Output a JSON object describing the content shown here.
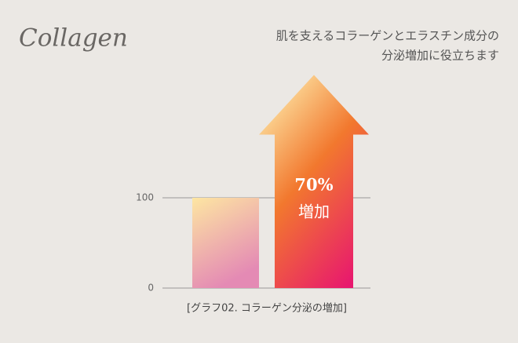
{
  "chart_data": {
    "type": "bar",
    "title": "Collagen",
    "subtitle": [
      "肌を支えるコラーゲンとエラスチン成分の",
      "分泌増加に役立ちます"
    ],
    "categories": [
      null,
      null
    ],
    "values": [
      100,
      170
    ],
    "colors": [
      "#e48ab4",
      "#e8186e"
    ],
    "ylim": [
      0,
      200
    ],
    "yticks": [
      0,
      100
    ],
    "annotation": [
      "70%",
      "増加"
    ],
    "caption": "[グラフ02. コラーゲン分泌の増加]"
  }
}
